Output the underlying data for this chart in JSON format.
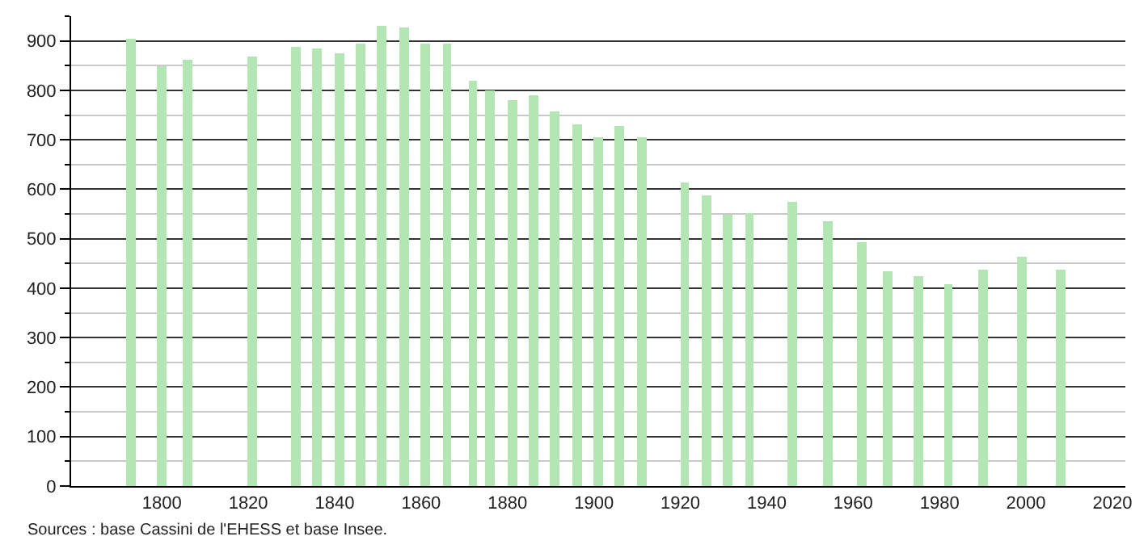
{
  "chart_data": {
    "type": "bar",
    "x": [
      1793,
      1800,
      1806,
      1821,
      1831,
      1836,
      1841,
      1846,
      1851,
      1856,
      1861,
      1866,
      1872,
      1876,
      1881,
      1886,
      1891,
      1896,
      1901,
      1906,
      1911,
      1921,
      1926,
      1931,
      1936,
      1946,
      1954,
      1962,
      1968,
      1975,
      1982,
      1990,
      1999,
      2008
    ],
    "values": [
      905,
      849,
      861,
      869,
      888,
      886,
      875,
      895,
      931,
      928,
      895,
      895,
      819,
      800,
      781,
      789,
      757,
      731,
      705,
      727,
      705,
      615,
      589,
      550,
      553,
      574,
      534,
      492,
      433,
      423,
      407,
      437,
      462,
      438
    ],
    "color": "#b3e6b3",
    "xlim": [
      1779,
      2023
    ],
    "xticks": [
      1800,
      1820,
      1840,
      1860,
      1880,
      1900,
      1920,
      1940,
      1960,
      1980,
      2000,
      2020
    ],
    "ylim": [
      0,
      950
    ],
    "yticks": [
      0,
      100,
      200,
      300,
      400,
      500,
      600,
      700,
      800,
      900
    ],
    "grid": "y",
    "annotations": [
      "Sources : base Cassini de l'EHESS et base Insee."
    ]
  }
}
